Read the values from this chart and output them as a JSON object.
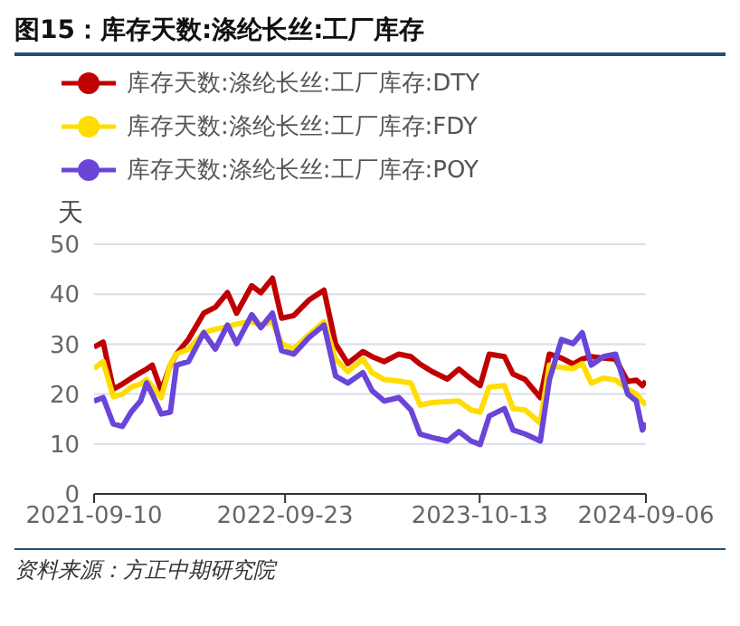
{
  "chart_data": {
    "type": "line",
    "title": "图15：库存天数:涤纶长丝:工厂库存",
    "ylabel": "天",
    "annotations": [
      "资料来源：方正中期研究院"
    ],
    "x": [
      "2021-09-10",
      "2021-09-28",
      "2021-10-18",
      "2021-11-05",
      "2021-11-23",
      "2021-12-11",
      "2021-12-23",
      "2022-01-03",
      "2022-01-21",
      "2022-02-08",
      "2022-02-20",
      "2022-03-16",
      "2022-04-15",
      "2022-05-08",
      "2022-06-01",
      "2022-06-19",
      "2022-07-19",
      "2022-08-06",
      "2022-08-29",
      "2022-09-16",
      "2022-10-10",
      "2022-11-09",
      "2022-12-09",
      "2023-01-01",
      "2023-01-25",
      "2023-02-24",
      "2023-03-14",
      "2023-04-07",
      "2023-05-06",
      "2023-05-30",
      "2023-06-17",
      "2023-07-11",
      "2023-08-10",
      "2023-09-02",
      "2023-09-26",
      "2023-10-14",
      "2023-11-01",
      "2023-12-01",
      "2023-12-18",
      "2024-01-11",
      "2024-02-10",
      "2024-02-28",
      "2024-03-23",
      "2024-04-15",
      "2024-05-03",
      "2024-05-21",
      "2024-06-14",
      "2024-07-08",
      "2024-08-01",
      "2024-08-18",
      "2024-08-30",
      "2024-09-06"
    ],
    "series": [
      {
        "name": "库存天数:涤纶长丝:工厂库存:DTY",
        "color": "#c00000",
        "values": [
          29.4,
          30.4,
          21,
          22,
          23.2,
          24.3,
          25,
          25.8,
          20.7,
          25.8,
          28,
          31,
          36.2,
          37.4,
          40.3,
          36.2,
          41.7,
          40.3,
          43.2,
          35.2,
          35.7,
          38.8,
          40.8,
          30,
          26.1,
          28.5,
          27.5,
          26.5,
          28,
          27.5,
          26,
          24.5,
          23,
          25,
          23,
          21.7,
          28,
          27.5,
          24,
          22.9,
          19.3,
          28,
          27.2,
          26,
          27,
          27.5,
          27.2,
          27,
          22.5,
          22.8,
          21.7,
          22.6
        ]
      },
      {
        "name": "库存天数:涤纶长丝:工厂库存:FDY",
        "color": "#ffdd00",
        "values": [
          25.1,
          26.5,
          19.5,
          20,
          21.4,
          22,
          22.9,
          21.5,
          19.3,
          26,
          28,
          29,
          32.3,
          33,
          33.5,
          34,
          34.5,
          33.8,
          34.5,
          30.1,
          29,
          31.9,
          34.5,
          27,
          24.5,
          27,
          24.3,
          22.9,
          22.6,
          22.2,
          17.8,
          18.3,
          18.5,
          18.6,
          16.8,
          16.4,
          21.4,
          21.7,
          17.1,
          16.8,
          14.2,
          25.8,
          25.3,
          25.1,
          26.1,
          22.2,
          23.2,
          22.8,
          21,
          20,
          18.5,
          17.8
        ]
      },
      {
        "name": "库存天数:涤纶长丝:工厂库存:POY",
        "color": "#6a45d8",
        "values": [
          18.6,
          19.3,
          14,
          13.5,
          16.5,
          18.6,
          22.2,
          20,
          16,
          16.4,
          25.8,
          26.5,
          32.3,
          29,
          33.8,
          30.1,
          35.9,
          33.3,
          36.2,
          28.7,
          28,
          31.3,
          33.8,
          23.6,
          22.2,
          24.3,
          20.7,
          18.6,
          19.3,
          16.8,
          12,
          11.3,
          10.6,
          12.5,
          10.6,
          9.9,
          15.6,
          17.1,
          12.8,
          12,
          10.6,
          22.9,
          30.9,
          30.1,
          32.3,
          25.8,
          27.5,
          28,
          20,
          18.6,
          12.8,
          14.2
        ]
      }
    ],
    "xlim": [
      "2021-09-10",
      "2024-09-06"
    ],
    "xticks": [
      "2021-09-10",
      "2022-09-23",
      "2023-10-13",
      "2024-09-06"
    ],
    "ylim": [
      0,
      50
    ],
    "yticks": [
      0,
      10,
      20,
      30,
      40,
      50
    ],
    "grid": "y",
    "legend": "top left",
    "marker": "none",
    "line_style": "solid"
  }
}
